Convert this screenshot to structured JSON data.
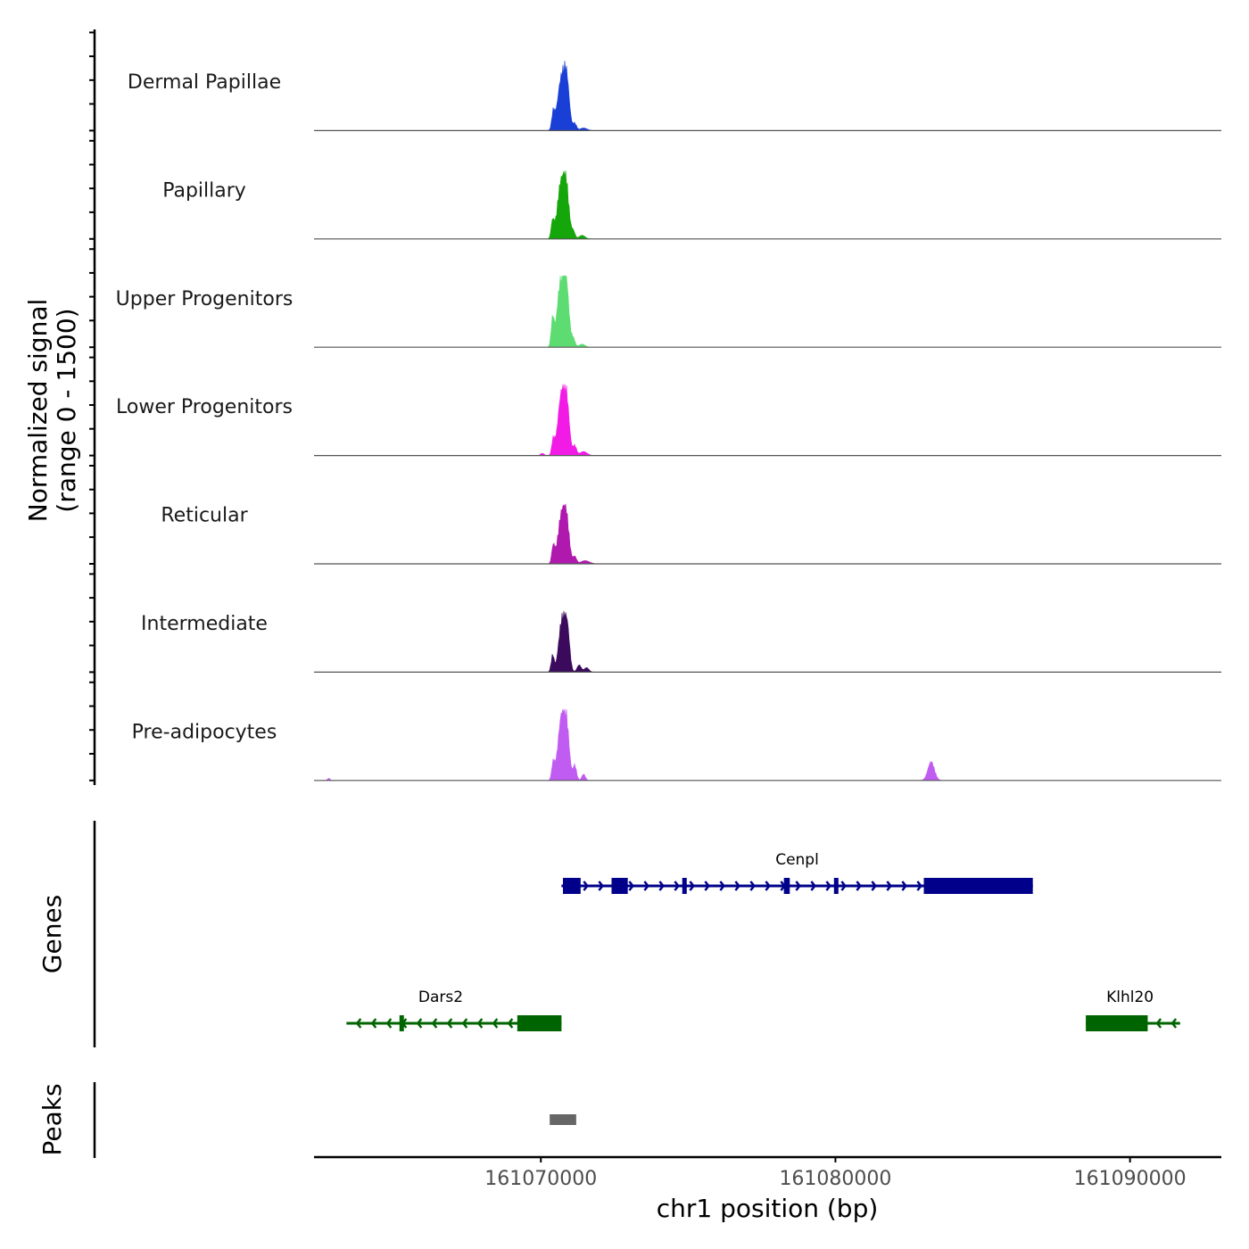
{
  "chart_data": {
    "type": "area",
    "title": "",
    "xlabel": "chr1 position (bp)",
    "ylabel": "Normalized signal\n(range 0 - 1500)",
    "ylabel_line1": "Normalized signal",
    "ylabel_line2": "(range 0 - 1500)",
    "ylim": [
      0,
      1500
    ],
    "xlim": [
      161062300,
      161093100
    ],
    "x_ticks": [
      161070000,
      161080000,
      161090000
    ],
    "x_tick_labels": [
      "161070000",
      "161080000",
      "161090000"
    ],
    "tracks": [
      {
        "name": "Dermal Papillae",
        "color": "#1a3fd6",
        "peaks": [
          {
            "center": 161070700,
            "width": 130,
            "height": 1150
          },
          {
            "center": 161070880,
            "width": 90,
            "height": 900
          },
          {
            "center": 161070420,
            "width": 50,
            "height": 380
          },
          {
            "center": 161071150,
            "width": 60,
            "height": 160
          },
          {
            "center": 161071450,
            "width": 120,
            "height": 60
          }
        ]
      },
      {
        "name": "Papillary",
        "color": "#14a60a",
        "peaks": [
          {
            "center": 161070680,
            "width": 120,
            "height": 1230
          },
          {
            "center": 161070870,
            "width": 90,
            "height": 1000
          },
          {
            "center": 161070400,
            "width": 50,
            "height": 380
          },
          {
            "center": 161071100,
            "width": 60,
            "height": 170
          },
          {
            "center": 161071400,
            "width": 100,
            "height": 80
          }
        ]
      },
      {
        "name": "Upper Progenitors",
        "color": "#5ddc72",
        "peaks": [
          {
            "center": 161070680,
            "width": 120,
            "height": 1500
          },
          {
            "center": 161070870,
            "width": 90,
            "height": 1150
          },
          {
            "center": 161070400,
            "width": 50,
            "height": 620
          },
          {
            "center": 161071100,
            "width": 60,
            "height": 190
          },
          {
            "center": 161071400,
            "width": 100,
            "height": 70
          }
        ]
      },
      {
        "name": "Lower Progenitors",
        "color": "#f21be6",
        "peaks": [
          {
            "center": 161070700,
            "width": 120,
            "height": 1340
          },
          {
            "center": 161070880,
            "width": 90,
            "height": 1000
          },
          {
            "center": 161070420,
            "width": 50,
            "height": 340
          },
          {
            "center": 161071150,
            "width": 60,
            "height": 220
          },
          {
            "center": 161071450,
            "width": 120,
            "height": 90
          },
          {
            "center": 161070050,
            "width": 60,
            "height": 50
          }
        ]
      },
      {
        "name": "Reticular",
        "color": "#b019ad",
        "peaks": [
          {
            "center": 161070700,
            "width": 120,
            "height": 1080
          },
          {
            "center": 161070880,
            "width": 90,
            "height": 820
          },
          {
            "center": 161070420,
            "width": 50,
            "height": 380
          },
          {
            "center": 161071150,
            "width": 60,
            "height": 160
          },
          {
            "center": 161071500,
            "width": 150,
            "height": 70
          }
        ]
      },
      {
        "name": "Intermediate",
        "color": "#3b0a5c",
        "peaks": [
          {
            "center": 161070720,
            "width": 110,
            "height": 1180
          },
          {
            "center": 161070900,
            "width": 80,
            "height": 850
          },
          {
            "center": 161070400,
            "width": 50,
            "height": 380
          },
          {
            "center": 161071300,
            "width": 70,
            "height": 160
          },
          {
            "center": 161071550,
            "width": 80,
            "height": 100
          }
        ]
      },
      {
        "name": "Pre-adipocytes",
        "color": "#c15cf2",
        "peaks": [
          {
            "center": 161070700,
            "width": 120,
            "height": 1380
          },
          {
            "center": 161070880,
            "width": 90,
            "height": 1000
          },
          {
            "center": 161070420,
            "width": 50,
            "height": 380
          },
          {
            "center": 161071150,
            "width": 60,
            "height": 340
          },
          {
            "center": 161071450,
            "width": 60,
            "height": 140
          },
          {
            "center": 161083250,
            "width": 110,
            "height": 420
          },
          {
            "center": 161062800,
            "width": 40,
            "height": 50
          }
        ]
      }
    ],
    "genes": [
      {
        "name": "Cenpl",
        "strand": "+",
        "color": "#00008b",
        "start": 161070700,
        "end": 161086700,
        "exons": [
          [
            161070750,
            161071350
          ],
          [
            161072400,
            161072950
          ],
          [
            161074800,
            161074950
          ],
          [
            161078250,
            161078450
          ],
          [
            161079950,
            161080050
          ],
          [
            161083000,
            161086700
          ]
        ]
      },
      {
        "name": "Dars2",
        "strand": "-",
        "color": "#006400",
        "start": 161063400,
        "end": 161070700,
        "exons": [
          [
            161069200,
            161070700
          ],
          [
            161065200,
            161065280
          ]
        ]
      },
      {
        "name": "Klhl20",
        "strand": "-",
        "color": "#006400",
        "start": 161088500,
        "end": 161091700,
        "exons": [
          [
            161088500,
            161090600
          ]
        ]
      }
    ],
    "peaks_track": [
      {
        "start": 161070300,
        "end": 161071200,
        "color": "#666666"
      }
    ],
    "panel_labels": {
      "genes": "Genes",
      "peaks": "Peaks"
    }
  }
}
